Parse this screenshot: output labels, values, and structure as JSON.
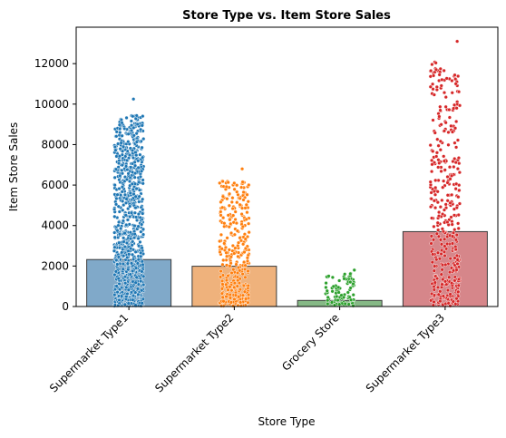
{
  "chart_data": {
    "type": "bar",
    "title": "Store Type vs. Item Store Sales",
    "xlabel": "Store Type",
    "ylabel": "Item Store Sales",
    "ylim": [
      0,
      13800
    ],
    "yticks": [
      0,
      2000,
      4000,
      6000,
      8000,
      10000,
      12000
    ],
    "grid": false,
    "categories": [
      "Supermarket Type1",
      "Supermarket Type2",
      "Grocery Store",
      "Supermarket Type3"
    ],
    "values": [
      2320,
      1990,
      300,
      3700
    ],
    "bar_colors": [
      "#80a9c9",
      "#efb27c",
      "#86b986",
      "#d6868a"
    ],
    "strip_colors": [
      "#1f77b4",
      "#ff7f0e",
      "#2ca02c",
      "#d62728"
    ],
    "strip_max": [
      10250,
      6800,
      1800,
      13100
    ],
    "strip_counts": [
      900,
      320,
      90,
      380
    ]
  }
}
